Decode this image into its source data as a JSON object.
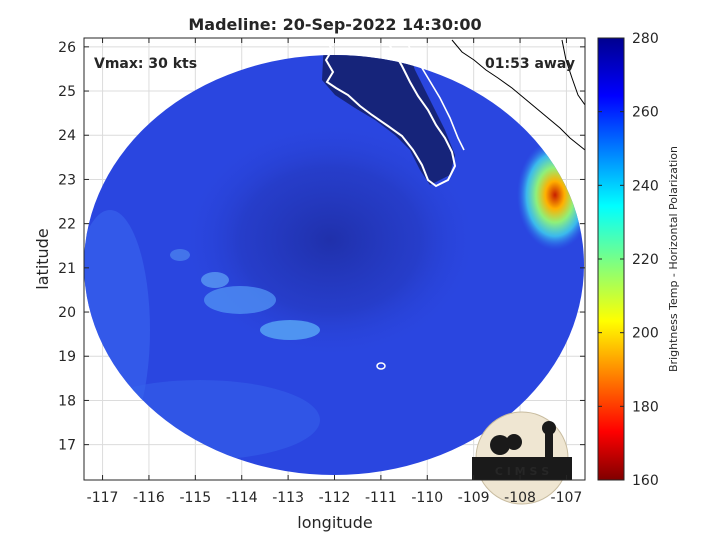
{
  "figure": {
    "title": "Madeline: 20-Sep-2022 14:30:00",
    "vmax_label": "Vmax: 30 kts",
    "away_label": "01:53 away",
    "logo_text": "C I M S S"
  },
  "chart_data": {
    "type": "heatmap",
    "title": "Madeline: 20-Sep-2022 14:30:00",
    "xlabel": "longitude",
    "ylabel": "latitude",
    "xlim": [
      -117.4,
      -106.6
    ],
    "ylim": [
      16.2,
      26.2
    ],
    "xticks": [
      -117,
      -116,
      -115,
      -114,
      -113,
      -112,
      -111,
      -110,
      -109,
      -108,
      -107
    ],
    "yticks": [
      17,
      18,
      19,
      20,
      21,
      22,
      23,
      24,
      25,
      26
    ],
    "grid": true,
    "colorbar": {
      "label": "Brightness Temp - Horizontal Polarization",
      "range": [
        160,
        280
      ],
      "ticks": [
        160,
        180,
        200,
        220,
        240,
        260,
        280
      ],
      "colormap": "jet"
    },
    "annotations": [
      "Vmax: 30 kts",
      "01:53 away"
    ],
    "colors": {
      "scene_base": "#2a46e0",
      "eye_dark": "#1f2fa8",
      "land_dark": "#16247a",
      "cold_spot": "#c81e00",
      "coastline": "#ffffff",
      "mainland_outline": "#000000"
    }
  }
}
